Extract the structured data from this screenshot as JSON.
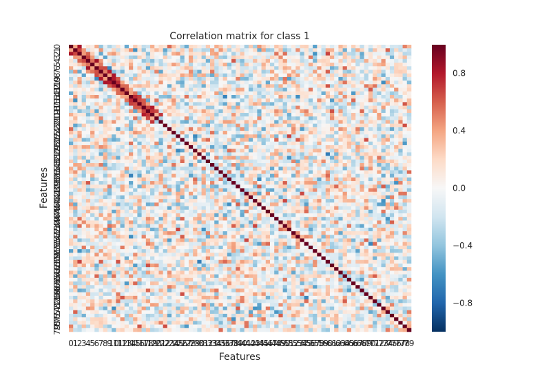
{
  "chart_data": {
    "type": "heatmap",
    "title": "Correlation matrix for class 1",
    "xlabel": "Features",
    "ylabel": "Features",
    "n_features": 80,
    "colorbar": {
      "min": -1.0,
      "max": 1.0,
      "ticks": [
        -0.8,
        -0.4,
        0.0,
        0.4,
        0.8
      ],
      "tick_labels": [
        "−0.8",
        "−0.4",
        "0.0",
        "0.4",
        "0.8"
      ],
      "colormap": "RdBu_r",
      "colors": [
        "#053061",
        "#2166ac",
        "#4393c3",
        "#92c5de",
        "#d1e5f0",
        "#f7f7f7",
        "#fddbc7",
        "#f4a582",
        "#d6604d",
        "#b2182b",
        "#67001f"
      ]
    },
    "diagonal_value": 1.0,
    "values_note": "",
    "seed": 1
  }
}
